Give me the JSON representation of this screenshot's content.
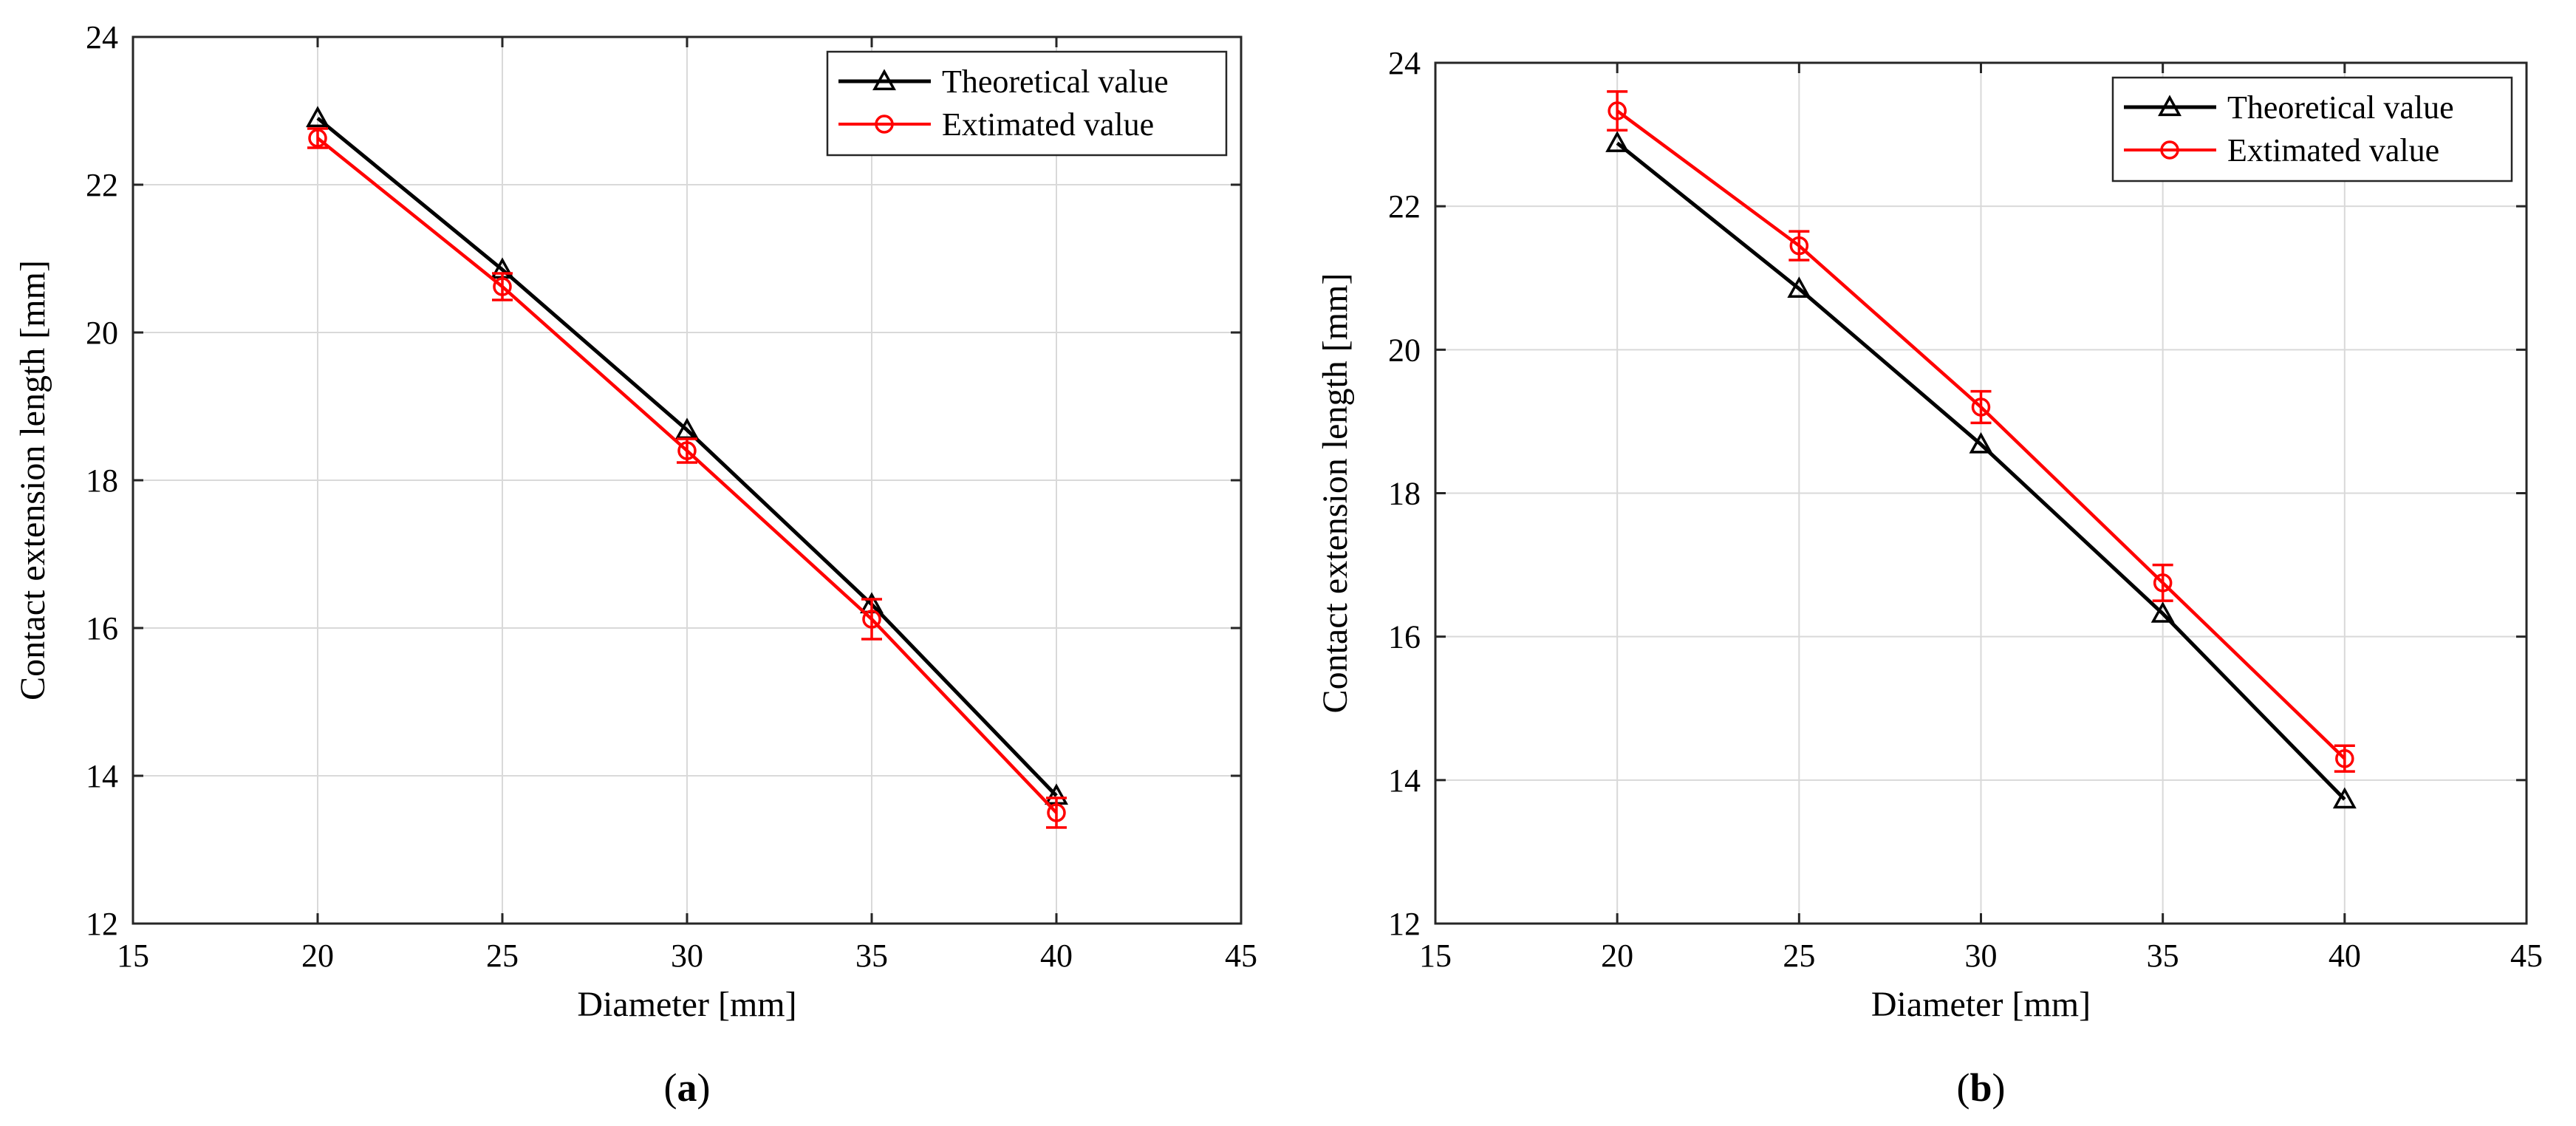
{
  "colors": {
    "theoretical": "#000000",
    "estimated": "#ff0000",
    "grid": "#d9d9d9",
    "axis": "#262626"
  },
  "chart_data": [
    {
      "type": "line",
      "panel_label": "a",
      "panel_label_open": "(",
      "panel_label_close": ")",
      "xlabel": "Diameter [mm]",
      "ylabel": "Contact extension length [mm]",
      "xlim": [
        15,
        45
      ],
      "ylim": [
        12,
        24
      ],
      "xticks": [
        15,
        20,
        25,
        30,
        35,
        40,
        45
      ],
      "yticks": [
        12,
        14,
        16,
        18,
        20,
        22,
        24
      ],
      "grid": true,
      "legend_position": "top-right",
      "x": [
        20,
        25,
        30,
        35,
        40
      ],
      "series": [
        {
          "name": "Theoretical value",
          "marker": "triangle",
          "color": "#000000",
          "values": [
            22.9,
            20.85,
            18.68,
            16.32,
            13.73
          ]
        },
        {
          "name": "Extimated value",
          "marker": "circle",
          "color": "#ff0000",
          "values": [
            22.63,
            20.62,
            18.4,
            16.12,
            13.5
          ],
          "errors": [
            0.13,
            0.18,
            0.16,
            0.27,
            0.2
          ]
        }
      ]
    },
    {
      "type": "line",
      "panel_label": "b",
      "panel_label_open": "(",
      "panel_label_close": ")",
      "xlabel": "Diameter [mm]",
      "ylabel": "Contact extension length [mm]",
      "xlim": [
        15,
        45
      ],
      "ylim": [
        12,
        24
      ],
      "xticks": [
        15,
        20,
        25,
        30,
        35,
        40,
        45
      ],
      "yticks": [
        12,
        14,
        16,
        18,
        20,
        22,
        24
      ],
      "grid": true,
      "legend_position": "top-right",
      "x": [
        20,
        25,
        30,
        35,
        40
      ],
      "series": [
        {
          "name": "Theoretical value",
          "marker": "triangle",
          "color": "#000000",
          "values": [
            22.88,
            20.85,
            18.68,
            16.32,
            13.73
          ]
        },
        {
          "name": "Extimated value",
          "marker": "circle",
          "color": "#ff0000",
          "values": [
            23.33,
            21.45,
            19.2,
            16.75,
            14.3
          ],
          "errors": [
            0.27,
            0.2,
            0.22,
            0.25,
            0.18
          ]
        }
      ]
    }
  ]
}
